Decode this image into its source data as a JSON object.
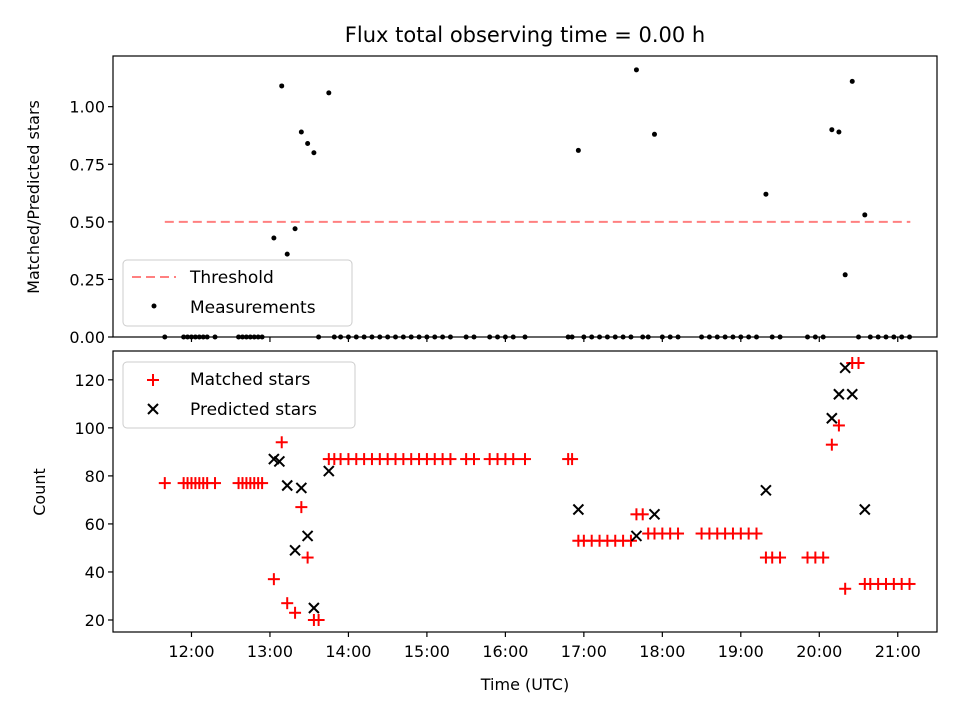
{
  "chart_data": [
    {
      "type": "scatter",
      "title": "Flux total observing time = 0.00 h",
      "xlabel": "",
      "ylabel": "Matched/Predicted stars",
      "xlim": [
        11.0,
        21.5
      ],
      "ylim": [
        0.0,
        1.22
      ],
      "yticks": [
        0.0,
        0.25,
        0.5,
        0.75,
        1.0
      ],
      "ytick_labels": [
        "0.00",
        "0.25",
        "0.50",
        "0.75",
        "1.00"
      ],
      "legend_position": "lower-left",
      "series": [
        {
          "name": "Threshold",
          "style": "dashed-line",
          "color": "#ff8080",
          "x": [
            11.66,
            21.16
          ],
          "y": [
            0.5,
            0.5
          ]
        },
        {
          "name": "Measurements",
          "style": "dot",
          "color": "#000000",
          "x": [
            11.66,
            11.9,
            11.95,
            12.0,
            12.05,
            12.1,
            12.15,
            12.2,
            12.3,
            12.6,
            12.65,
            12.7,
            12.75,
            12.8,
            12.85,
            12.9,
            13.05,
            13.15,
            13.22,
            13.32,
            13.4,
            13.48,
            13.56,
            13.62,
            13.75,
            13.82,
            13.9,
            14.0,
            14.1,
            14.2,
            14.3,
            14.4,
            14.5,
            14.6,
            14.7,
            14.8,
            14.9,
            15.0,
            15.1,
            15.2,
            15.3,
            15.5,
            15.6,
            15.8,
            15.9,
            16.0,
            16.1,
            16.25,
            16.8,
            16.85,
            16.93,
            17.0,
            17.1,
            17.2,
            17.3,
            17.4,
            17.5,
            17.6,
            17.67,
            17.75,
            17.82,
            17.9,
            18.0,
            18.1,
            18.2,
            18.5,
            18.6,
            18.7,
            18.8,
            18.9,
            19.0,
            19.1,
            19.2,
            19.32,
            19.4,
            19.5,
            19.85,
            19.95,
            20.05,
            20.16,
            20.25,
            20.33,
            20.42,
            20.5,
            20.58,
            20.65,
            20.75,
            20.85,
            20.95,
            21.05,
            21.15
          ],
          "y": [
            0.0,
            0.0,
            0.0,
            0.0,
            0.0,
            0.0,
            0.0,
            0.0,
            0.0,
            0.0,
            0.0,
            0.0,
            0.0,
            0.0,
            0.0,
            0.0,
            0.43,
            1.09,
            0.36,
            0.47,
            0.89,
            0.84,
            0.8,
            0.0,
            1.06,
            0.0,
            0.0,
            0.0,
            0.0,
            0.0,
            0.0,
            0.0,
            0.0,
            0.0,
            0.0,
            0.0,
            0.0,
            0.0,
            0.0,
            0.0,
            0.0,
            0.0,
            0.0,
            0.0,
            0.0,
            0.0,
            0.0,
            0.0,
            0.0,
            0.0,
            0.81,
            0.0,
            0.0,
            0.0,
            0.0,
            0.0,
            0.0,
            0.0,
            1.16,
            0.0,
            0.0,
            0.88,
            0.0,
            0.0,
            0.0,
            0.0,
            0.0,
            0.0,
            0.0,
            0.0,
            0.0,
            0.0,
            0.0,
            0.62,
            0.0,
            0.0,
            0.0,
            0.0,
            0.0,
            0.9,
            0.89,
            0.27,
            1.11,
            0.0,
            0.53,
            0.0,
            0.0,
            0.0,
            0.0,
            0.0,
            0.0
          ]
        }
      ]
    },
    {
      "type": "scatter",
      "title": "",
      "xlabel": "Time (UTC)",
      "ylabel": "Count",
      "xlim": [
        11.0,
        21.5
      ],
      "ylim": [
        15,
        132
      ],
      "yticks": [
        20,
        40,
        60,
        80,
        100,
        120
      ],
      "ytick_labels": [
        "20",
        "40",
        "60",
        "80",
        "100",
        "120"
      ],
      "xticks": [
        12,
        13,
        14,
        15,
        16,
        17,
        18,
        19,
        20,
        21
      ],
      "xtick_labels": [
        "12:00",
        "13:00",
        "14:00",
        "15:00",
        "16:00",
        "17:00",
        "18:00",
        "19:00",
        "20:00",
        "21:00"
      ],
      "legend_position": "top-left",
      "series": [
        {
          "name": "Matched stars",
          "style": "plus",
          "color": "#ff0000",
          "x": [
            11.66,
            11.9,
            11.95,
            12.0,
            12.05,
            12.1,
            12.15,
            12.2,
            12.3,
            12.6,
            12.65,
            12.7,
            12.75,
            12.8,
            12.85,
            12.9,
            13.05,
            13.15,
            13.22,
            13.32,
            13.4,
            13.48,
            13.56,
            13.62,
            13.75,
            13.82,
            13.9,
            14.0,
            14.1,
            14.2,
            14.3,
            14.4,
            14.5,
            14.6,
            14.7,
            14.8,
            14.9,
            15.0,
            15.1,
            15.2,
            15.3,
            15.5,
            15.6,
            15.8,
            15.9,
            16.0,
            16.1,
            16.25,
            16.8,
            16.85,
            16.93,
            17.0,
            17.1,
            17.2,
            17.3,
            17.4,
            17.5,
            17.6,
            17.67,
            17.75,
            17.82,
            17.9,
            18.0,
            18.1,
            18.2,
            18.5,
            18.6,
            18.7,
            18.8,
            18.9,
            19.0,
            19.1,
            19.2,
            19.32,
            19.4,
            19.5,
            19.85,
            19.95,
            20.05,
            20.16,
            20.25,
            20.33,
            20.42,
            20.5,
            20.58,
            20.65,
            20.75,
            20.85,
            20.95,
            21.05,
            21.15
          ],
          "y": [
            77,
            77,
            77,
            77,
            77,
            77,
            77,
            77,
            77,
            77,
            77,
            77,
            77,
            77,
            77,
            77,
            37,
            94,
            27,
            23,
            67,
            46,
            20,
            20,
            87,
            87,
            87,
            87,
            87,
            87,
            87,
            87,
            87,
            87,
            87,
            87,
            87,
            87,
            87,
            87,
            87,
            87,
            87,
            87,
            87,
            87,
            87,
            87,
            87,
            87,
            53,
            53,
            53,
            53,
            53,
            53,
            53,
            53,
            64,
            64,
            56,
            56,
            56,
            56,
            56,
            56,
            56,
            56,
            56,
            56,
            56,
            56,
            56,
            46,
            46,
            46,
            46,
            46,
            46,
            93,
            101,
            33,
            127,
            127,
            35,
            35,
            35,
            35,
            35,
            35,
            35
          ]
        },
        {
          "name": "Predicted stars",
          "style": "cross",
          "color": "#000000",
          "x": [
            13.05,
            13.12,
            13.22,
            13.32,
            13.4,
            13.48,
            13.56,
            13.75,
            16.93,
            17.67,
            17.9,
            19.32,
            20.16,
            20.25,
            20.33,
            20.42,
            20.58
          ],
          "y": [
            87,
            86,
            76,
            49,
            75,
            55,
            25,
            82,
            66,
            55,
            64,
            74,
            104,
            114,
            125,
            114,
            66
          ]
        }
      ]
    }
  ]
}
